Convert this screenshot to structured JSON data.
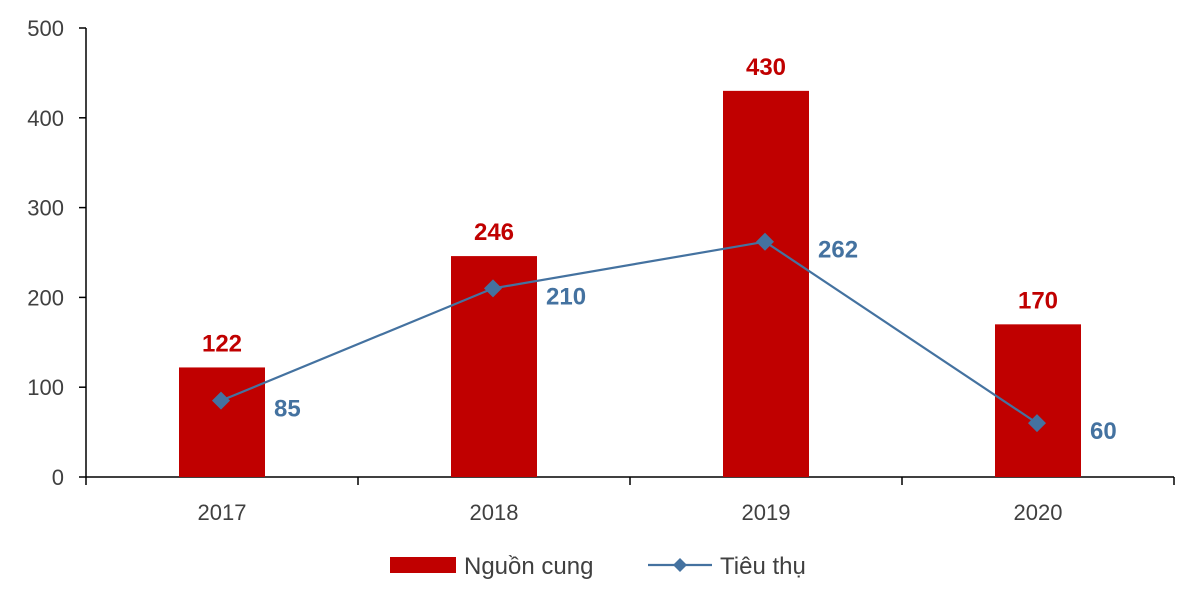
{
  "chart_data": {
    "type": "bar",
    "categories": [
      "2017",
      "2018",
      "2019",
      "2020"
    ],
    "ylim": [
      0,
      500
    ],
    "yticks": [
      0,
      100,
      200,
      300,
      400,
      500
    ],
    "grid": false,
    "legend_position": "bottom-center",
    "series": [
      {
        "name": "Nguồn cung",
        "type": "bar",
        "color": "#C00000",
        "values": [
          122,
          246,
          430,
          170
        ]
      },
      {
        "name": "Tiêu thụ",
        "type": "line",
        "color": "#4472A0",
        "marker": "diamond",
        "values": [
          85,
          210,
          262,
          60
        ]
      }
    ]
  }
}
